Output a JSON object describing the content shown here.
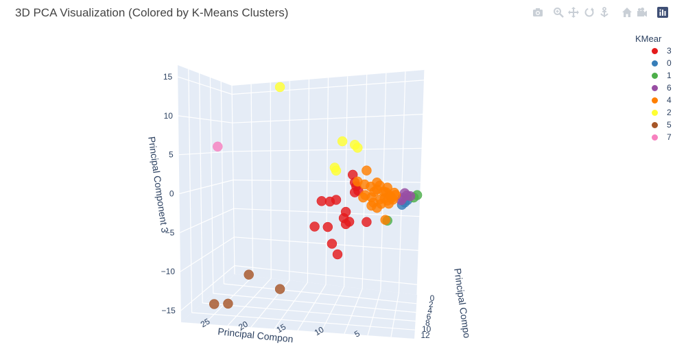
{
  "title": "3D PCA Visualization (Colored by K-Means Clusters)",
  "modebar": [
    {
      "name": "camera-icon",
      "label": "Download plot as a png"
    },
    {
      "name": "zoom-icon",
      "label": "Zoom"
    },
    {
      "name": "pan-icon",
      "label": "Pan"
    },
    {
      "name": "orbit-icon",
      "label": "Orbital rotation"
    },
    {
      "name": "turntable-icon",
      "label": "Turntable rotation"
    },
    {
      "name": "home-icon",
      "label": "Reset camera to default"
    },
    {
      "name": "camera-view-icon",
      "label": "Reset camera to last save"
    },
    {
      "name": "plotly-logo-icon",
      "label": "Produced with Plotly"
    }
  ],
  "legend": {
    "title": "KMear",
    "items": [
      {
        "label": "3",
        "color": "#E41A1C"
      },
      {
        "label": "0",
        "color": "#377EB8"
      },
      {
        "label": "1",
        "color": "#4DAF4A"
      },
      {
        "label": "6",
        "color": "#984EA3"
      },
      {
        "label": "4",
        "color": "#FF7F00"
      },
      {
        "label": "2",
        "color": "#FFFF33"
      },
      {
        "label": "5",
        "color": "#A65628"
      },
      {
        "label": "7",
        "color": "#F781BF"
      }
    ]
  },
  "chart_data": {
    "type": "scatter",
    "title": "3D PCA Visualization (Colored by K-Means Clusters)",
    "axes": {
      "x": {
        "label": "Principal Compon",
        "ticks": [
          "25",
          "20",
          "15",
          "10",
          "5"
        ]
      },
      "y": {
        "label": "Principal Compo",
        "ticks": [
          "0",
          "2",
          "4",
          "6",
          "8",
          "10",
          "12"
        ]
      },
      "z": {
        "label": "Principal Component 3",
        "ticks": [
          "15",
          "10",
          "5",
          "0",
          "−5",
          "−10",
          "−15"
        ]
      }
    },
    "grid": true,
    "legend_position": "right",
    "series": [
      {
        "name": "3",
        "color": "#E41A1C",
        "points": [
          [
            8,
            5,
            3.3
          ],
          [
            7.7,
            5,
            2.3
          ],
          [
            7.5,
            5,
            1.8
          ],
          [
            7.2,
            5,
            1.2
          ],
          [
            7.7,
            5,
            1.0
          ],
          [
            12.5,
            5,
            0
          ],
          [
            11.3,
            5,
            -0.1
          ],
          [
            10.4,
            5,
            0.1
          ],
          [
            9.0,
            5,
            -1.5
          ],
          [
            9.3,
            5,
            -2.3
          ],
          [
            8.5,
            5,
            -2.8
          ],
          [
            9.0,
            5,
            -3.1
          ],
          [
            13.5,
            5,
            -3.3
          ],
          [
            11.6,
            5,
            -3.4
          ],
          [
            6.0,
            5,
            -2.9
          ],
          [
            11.0,
            5,
            -5.6
          ],
          [
            10.2,
            5,
            -7.0
          ]
        ]
      },
      {
        "name": "0",
        "color": "#377EB8",
        "points": [
          [
            0.5,
            5,
            -0.5
          ],
          [
            0.1,
            5,
            -0.2
          ],
          [
            0.9,
            5,
            -0.8
          ]
        ]
      },
      {
        "name": "1",
        "color": "#4DAF4A",
        "points": [
          [
            -1.3,
            5,
            0.4
          ],
          [
            -0.8,
            5,
            0.1
          ],
          [
            3.0,
            5,
            -2.8
          ]
        ]
      },
      {
        "name": "6",
        "color": "#984EA3",
        "points": [
          [
            -0.3,
            5,
            0.3
          ],
          [
            0.8,
            5,
            0.1
          ],
          [
            0.5,
            5,
            0.7
          ],
          [
            0.2,
            5,
            0.4
          ],
          [
            1.0,
            5,
            -0.2
          ]
        ]
      },
      {
        "name": "4",
        "color": "#FF7F00",
        "points": [
          [
            4.5,
            5,
            1.3
          ],
          [
            3.5,
            5,
            1.0
          ],
          [
            2.7,
            5,
            0.5
          ],
          [
            4.0,
            5,
            0
          ],
          [
            2.0,
            5,
            0.8
          ],
          [
            5.0,
            5,
            -0.4
          ],
          [
            3.0,
            5,
            -0.2
          ],
          [
            2.4,
            5,
            0.1
          ],
          [
            3.9,
            5,
            -0.6
          ],
          [
            4.9,
            5,
            1.0
          ],
          [
            1.8,
            5,
            0.5
          ],
          [
            3.2,
            5,
            0.9
          ],
          [
            6.0,
            5,
            3.8
          ],
          [
            7.3,
            5,
            2.4
          ],
          [
            6.3,
            5,
            2.0
          ],
          [
            4.5,
            5,
            2.2
          ],
          [
            5.3,
            5,
            0.3
          ],
          [
            3.4,
            5,
            0.1
          ],
          [
            2.5,
            5,
            0.3
          ],
          [
            4.1,
            5,
            1.8
          ],
          [
            3.0,
            5,
            1.5
          ],
          [
            5.3,
            5,
            -0.8
          ],
          [
            4.5,
            5,
            -1.1
          ],
          [
            2.8,
            5,
            -0.6
          ],
          [
            6.2,
            5,
            0.6
          ],
          [
            3.3,
            5,
            -2.7
          ],
          [
            5.4,
            5,
            1.7
          ],
          [
            2.2,
            5,
            -0.1
          ],
          [
            6.5,
            5,
            0.3
          ]
        ]
      },
      {
        "name": "2",
        "color": "#FFFF33",
        "points": [
          [
            18.5,
            5,
            15.0
          ],
          [
            9.5,
            5,
            7.7
          ],
          [
            7.7,
            5,
            7.2
          ],
          [
            7.3,
            5,
            6.8
          ],
          [
            10.6,
            5,
            4.3
          ],
          [
            10.4,
            5,
            3.9
          ]
        ]
      },
      {
        "name": "5",
        "color": "#A65628",
        "points": [
          [
            23.0,
            5,
            -9.3
          ],
          [
            18.5,
            5,
            -11.3
          ],
          [
            26.0,
            5,
            -13.0
          ],
          [
            28.0,
            5,
            -13.0
          ]
        ]
      },
      {
        "name": "7",
        "color": "#F781BF",
        "points": [
          [
            27.5,
            5,
            7.5
          ]
        ]
      }
    ]
  }
}
